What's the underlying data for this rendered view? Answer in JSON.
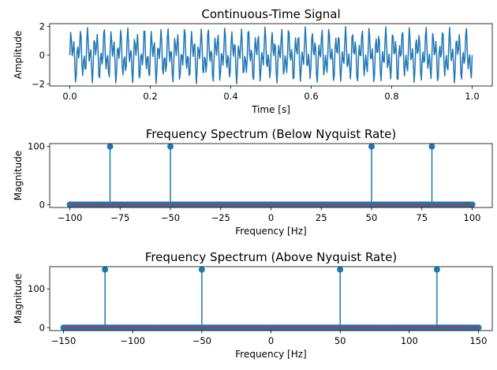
{
  "chart_data": [
    {
      "type": "line",
      "title": "Continuous-Time Signal",
      "xlabel": "Time [s]",
      "ylabel": "Amplitude",
      "xlim": [
        -0.05,
        1.05
      ],
      "ylim": [
        -2.15,
        2.2
      ],
      "xticks": [
        0.0,
        0.2,
        0.4,
        0.6,
        0.8,
        1.0
      ],
      "xtick_labels": [
        "0.0",
        "0.2",
        "0.4",
        "0.6",
        "0.8",
        "1.0"
      ],
      "yticks": [
        -2,
        0,
        2
      ],
      "ytick_labels": [
        "−2",
        "0",
        "2"
      ],
      "series": [
        {
          "color": "#1f77b4",
          "x_range": [
            0,
            1
          ],
          "components": [
            {
              "frequency": 50,
              "amplitude": 1
            },
            {
              "frequency": 120,
              "amplitude": 1
            }
          ]
        }
      ],
      "grid": false
    },
    {
      "type": "stem",
      "title": "Frequency Spectrum (Below Nyquist Rate)",
      "xlabel": "Frequency [Hz]",
      "ylabel": "Magnitude",
      "xlim": [
        -110,
        110
      ],
      "ylim": [
        -5,
        105
      ],
      "xticks": [
        -100,
        -75,
        -50,
        -25,
        0,
        25,
        50,
        75,
        100
      ],
      "xtick_labels": [
        "−100",
        "−75",
        "−50",
        "−25",
        "0",
        "25",
        "50",
        "75",
        "100"
      ],
      "yticks": [
        0,
        100
      ],
      "ytick_labels": [
        "0",
        "100"
      ],
      "x_range": [
        -100,
        100
      ],
      "x_step": 1,
      "peaks": [
        {
          "x": -80,
          "y": 100
        },
        {
          "x": -50,
          "y": 100
        },
        {
          "x": 50,
          "y": 100
        },
        {
          "x": 80,
          "y": 100
        }
      ],
      "stem_color": "#1f77b4",
      "baseline_color": "#d62728",
      "grid": false
    },
    {
      "type": "stem",
      "title": "Frequency Spectrum (Above Nyquist Rate)",
      "xlabel": "Frequency [Hz]",
      "ylabel": "Magnitude",
      "xlim": [
        -160,
        160
      ],
      "ylim": [
        -7.5,
        157.5
      ],
      "xticks": [
        -150,
        -100,
        -50,
        0,
        50,
        100,
        150
      ],
      "xtick_labels": [
        "−150",
        "−100",
        "−50",
        "0",
        "50",
        "100",
        "150"
      ],
      "yticks": [
        0,
        100
      ],
      "ytick_labels": [
        "0",
        "100"
      ],
      "x_range": [
        -150,
        150
      ],
      "x_step": 1,
      "peaks": [
        {
          "x": -120,
          "y": 150
        },
        {
          "x": -50,
          "y": 150
        },
        {
          "x": 50,
          "y": 150
        },
        {
          "x": 120,
          "y": 150
        }
      ],
      "stem_color": "#1f77b4",
      "baseline_color": "#d62728",
      "grid": false
    }
  ]
}
